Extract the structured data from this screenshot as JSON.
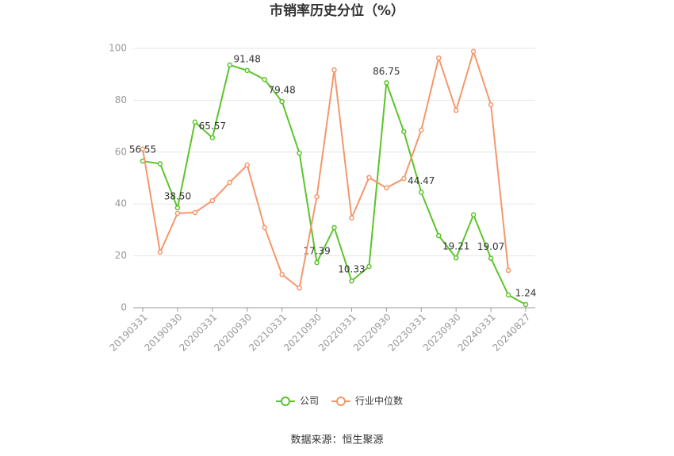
{
  "chart_data": {
    "type": "line",
    "title": "市销率历史分位（%）",
    "source": "数据来源：恒生聚源",
    "categories": [
      "20190331",
      null,
      "20190930",
      null,
      "20200331",
      null,
      "20200930",
      null,
      "20210331",
      null,
      "20210930",
      null,
      "20220331",
      null,
      "20220930",
      null,
      "20230331",
      null,
      "20230930",
      null,
      "20240331",
      null,
      "20240827"
    ],
    "series": [
      {
        "name": "公司",
        "color": "#5cc42b",
        "values": [
          56.55,
          55.5,
          38.5,
          71.6,
          65.57,
          93.6,
          91.48,
          88,
          79.48,
          59.6,
          17.39,
          30.9,
          10.33,
          15.9,
          86.75,
          67.9,
          44.47,
          27.8,
          19.21,
          35.8,
          19.07,
          4.9,
          1.24
        ],
        "value_labels": [
          "56.55",
          null,
          "38.50",
          null,
          "65.57",
          null,
          "91.48",
          null,
          "79.48",
          null,
          "17.39",
          null,
          "10.33",
          null,
          "86.75",
          null,
          "44.47",
          null,
          "19.21",
          null,
          "19.07",
          null,
          "1.24"
        ]
      },
      {
        "name": "行业中位数",
        "color": "#f5976b",
        "values": [
          61.2,
          21.4,
          36.4,
          36.7,
          41.3,
          48.3,
          55,
          30.9,
          12.8,
          7.6,
          42.8,
          91.7,
          34.6,
          50.2,
          46.2,
          49.8,
          68.5,
          96.3,
          76.1,
          98.8,
          78.3,
          14.4,
          null
        ]
      }
    ],
    "ylim": [
      0,
      100
    ],
    "yticks": [
      0,
      20,
      40,
      60,
      80,
      100
    ],
    "grid": true,
    "legend": "bottom"
  }
}
